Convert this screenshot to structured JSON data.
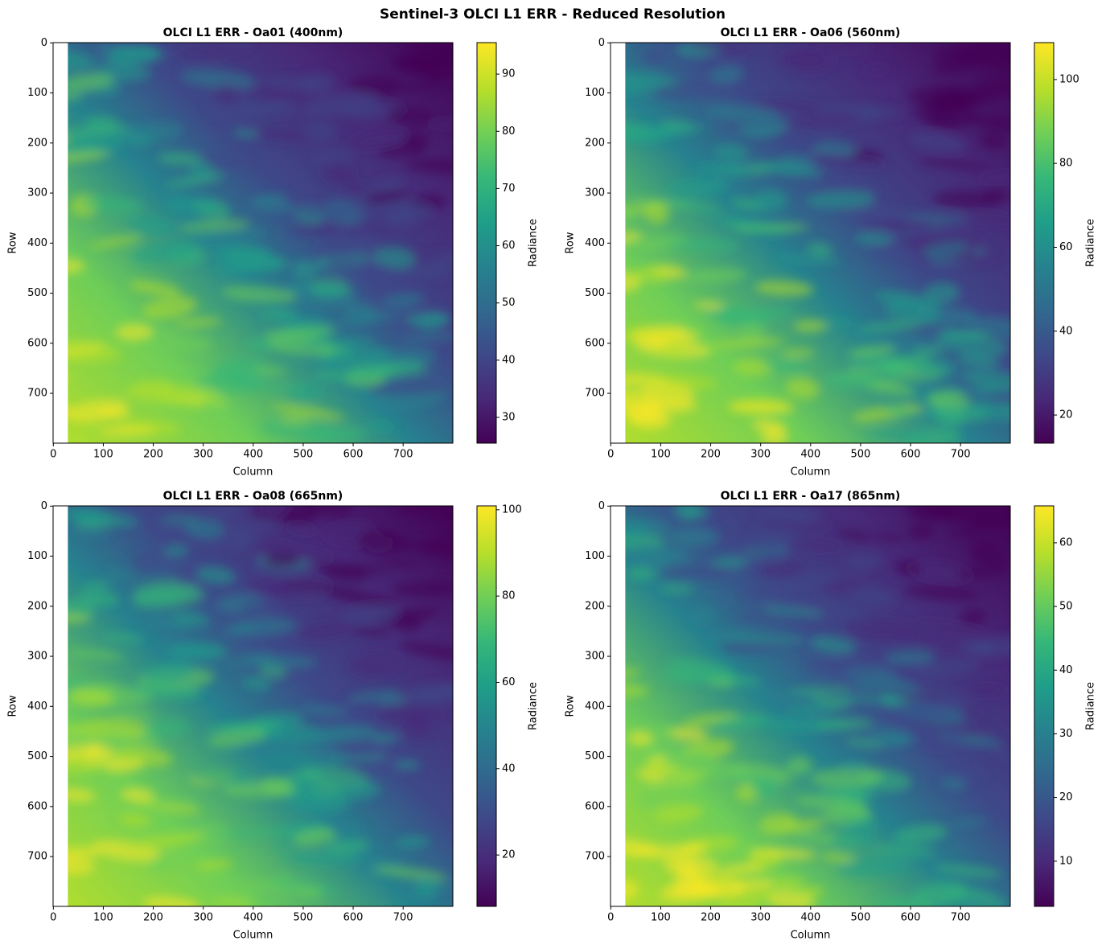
{
  "title": "Sentinel-3 OLCI L1 ERR - Reduced Resolution",
  "chart_data": [
    {
      "type": "image",
      "title": "OLCI L1 ERR - Oa01 (400nm)",
      "xlabel": "Column",
      "ylabel": "Row",
      "xlim": [
        -0.5,
        799.5
      ],
      "ylim": [
        799.5,
        -0.5
      ],
      "xticks": [
        0,
        100,
        200,
        300,
        400,
        500,
        600,
        700
      ],
      "yticks": [
        0,
        100,
        200,
        300,
        400,
        500,
        600,
        700
      ],
      "colorbar": {
        "label": "Radiance",
        "lim": [
          25.5,
          95.5
        ],
        "ticks": [
          30,
          40,
          50,
          60,
          70,
          80,
          90
        ]
      }
    },
    {
      "type": "image",
      "title": "OLCI L1 ERR - Oa06 (560nm)",
      "xlabel": "Column",
      "ylabel": "Row",
      "xlim": [
        -0.5,
        799.5
      ],
      "ylim": [
        799.5,
        -0.5
      ],
      "xticks": [
        0,
        100,
        200,
        300,
        400,
        500,
        600,
        700
      ],
      "yticks": [
        0,
        100,
        200,
        300,
        400,
        500,
        600,
        700
      ],
      "colorbar": {
        "label": "Radiance",
        "lim": [
          13.3,
          108.8
        ],
        "ticks": [
          20,
          40,
          60,
          80,
          100
        ]
      }
    },
    {
      "type": "image",
      "title": "OLCI L1 ERR - Oa08 (665nm)",
      "xlabel": "Column",
      "ylabel": "Row",
      "xlim": [
        -0.5,
        799.5
      ],
      "ylim": [
        799.5,
        -0.5
      ],
      "xticks": [
        0,
        100,
        200,
        300,
        400,
        500,
        600,
        700
      ],
      "yticks": [
        0,
        100,
        200,
        300,
        400,
        500,
        600,
        700
      ],
      "colorbar": {
        "label": "Radiance",
        "lim": [
          8.1,
          100.9
        ],
        "ticks": [
          20,
          40,
          60,
          80,
          100
        ]
      }
    },
    {
      "type": "image",
      "title": "OLCI L1 ERR - Oa17 (865nm)",
      "xlabel": "Column",
      "ylabel": "Row",
      "xlim": [
        -0.5,
        799.5
      ],
      "ylim": [
        799.5,
        -0.5
      ],
      "xticks": [
        0,
        100,
        200,
        300,
        400,
        500,
        600,
        700
      ],
      "yticks": [
        0,
        100,
        200,
        300,
        400,
        500,
        600,
        700
      ],
      "colorbar": {
        "label": "Radiance",
        "lim": [
          2.9,
          65.8
        ],
        "ticks": [
          10,
          20,
          30,
          40,
          50,
          60
        ]
      }
    }
  ]
}
